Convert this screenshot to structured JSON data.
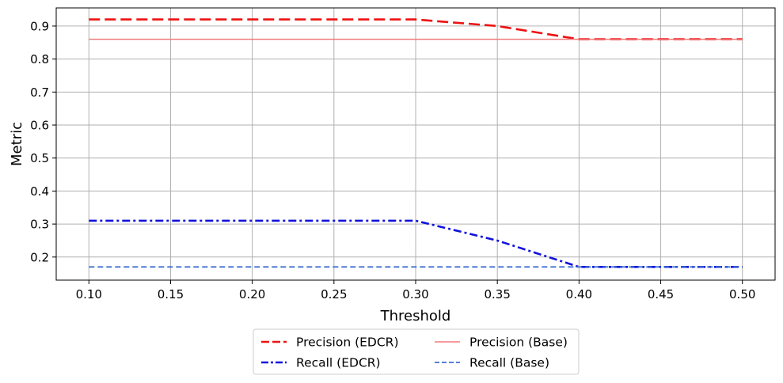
{
  "chart_data": {
    "type": "line",
    "title": "",
    "xlabel": "Threshold",
    "ylabel": "Metric",
    "xlim": [
      0.08,
      0.52
    ],
    "ylim": [
      0.13,
      0.955
    ],
    "x_ticks": [
      "0.10",
      "0.15",
      "0.20",
      "0.25",
      "0.30",
      "0.35",
      "0.40",
      "0.45",
      "0.50"
    ],
    "y_ticks": [
      "0.2",
      "0.3",
      "0.4",
      "0.5",
      "0.6",
      "0.7",
      "0.8",
      "0.9"
    ],
    "grid": true,
    "legend_position": "bottom-center",
    "x": [
      0.1,
      0.15,
      0.2,
      0.25,
      0.3,
      0.35,
      0.4,
      0.45,
      0.5
    ],
    "series": [
      {
        "name": "Precision (EDCR)",
        "values": [
          0.92,
          0.92,
          0.92,
          0.92,
          0.92,
          0.9,
          0.86,
          0.86,
          0.86
        ],
        "color": "#ee1111",
        "style": "dashed"
      },
      {
        "name": "Recall (EDCR)",
        "values": [
          0.31,
          0.31,
          0.31,
          0.31,
          0.31,
          0.25,
          0.17,
          0.17,
          0.17
        ],
        "color": "#1111dd",
        "style": "dashdot"
      },
      {
        "name": "Precision (Base)",
        "values": [
          0.86,
          0.86,
          0.86,
          0.86,
          0.86,
          0.86,
          0.86,
          0.86,
          0.86
        ],
        "color": "#f07a7a",
        "style": "solid"
      },
      {
        "name": "Recall (Base)",
        "values": [
          0.17,
          0.17,
          0.17,
          0.17,
          0.17,
          0.17,
          0.17,
          0.17,
          0.17
        ],
        "color": "#3f6fd0",
        "style": "dashed-thin"
      }
    ]
  }
}
